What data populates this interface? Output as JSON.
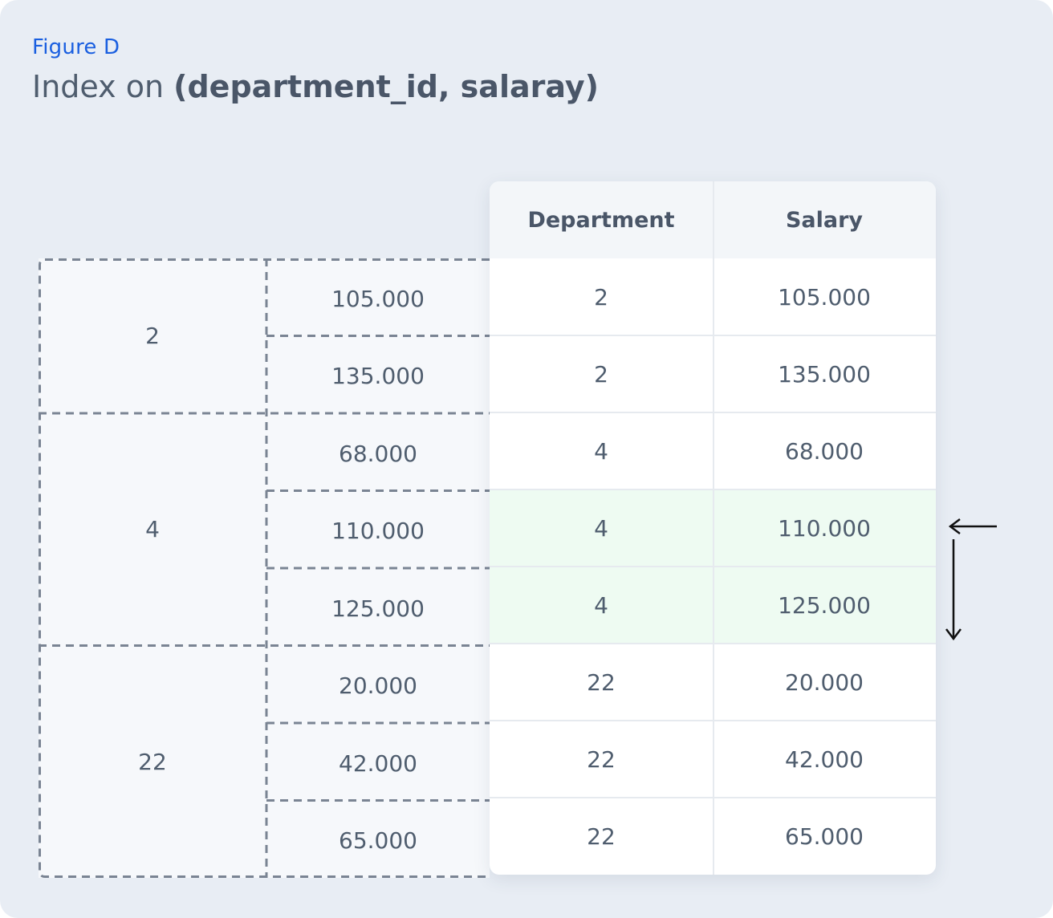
{
  "figure": {
    "label": "Figure D",
    "title_prefix": "Index on ",
    "title_bold": "(department_id, salaray)"
  },
  "index_groups": [
    {
      "department": "2",
      "salaries": [
        "105.000",
        "135.000"
      ]
    },
    {
      "department": "4",
      "salaries": [
        "68.000",
        "110.000",
        "125.000"
      ]
    },
    {
      "department": "22",
      "salaries": [
        "20.000",
        "42.000",
        "65.000"
      ]
    }
  ],
  "table": {
    "headers": [
      "Department",
      "Salary"
    ],
    "rows": [
      {
        "department": "2",
        "salary": "105.000",
        "highlighted": false
      },
      {
        "department": "2",
        "salary": "135.000",
        "highlighted": false
      },
      {
        "department": "4",
        "salary": "68.000",
        "highlighted": false
      },
      {
        "department": "4",
        "salary": "110.000",
        "highlighted": true
      },
      {
        "department": "4",
        "salary": "125.000",
        "highlighted": true
      },
      {
        "department": "22",
        "salary": "20.000",
        "highlighted": false
      },
      {
        "department": "22",
        "salary": "42.000",
        "highlighted": false
      },
      {
        "department": "22",
        "salary": "65.000",
        "highlighted": false
      }
    ]
  },
  "colors": {
    "background": "#e8edf4",
    "accent": "#1a5fe0",
    "highlight_row": "#eefbf2",
    "dashed_border": "#7a8493"
  }
}
